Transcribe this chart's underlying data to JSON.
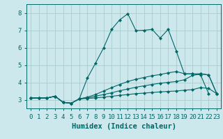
{
  "title": "",
  "xlabel": "Humidex (Indice chaleur)",
  "bg_color": "#cce8ec",
  "grid_color": "#aacccc",
  "line_color": "#006666",
  "xlim": [
    -0.5,
    23.5
  ],
  "ylim": [
    2.5,
    8.5
  ],
  "yticks": [
    3,
    4,
    5,
    6,
    7,
    8
  ],
  "xticks": [
    0,
    1,
    2,
    3,
    4,
    5,
    6,
    7,
    8,
    9,
    10,
    11,
    12,
    13,
    14,
    15,
    16,
    17,
    18,
    19,
    20,
    21,
    22,
    23
  ],
  "series": [
    {
      "x": [
        0,
        1,
        2,
        3,
        4,
        5,
        6,
        7,
        8,
        9,
        10,
        11,
        12,
        13,
        14,
        15,
        16,
        17,
        18,
        19,
        20,
        21,
        22,
        23
      ],
      "y": [
        3.1,
        3.1,
        3.1,
        3.2,
        2.85,
        2.8,
        3.05,
        3.08,
        3.1,
        3.15,
        3.2,
        3.25,
        3.3,
        3.35,
        3.38,
        3.42,
        3.45,
        3.48,
        3.5,
        3.55,
        3.58,
        3.7,
        3.65,
        3.35
      ]
    },
    {
      "x": [
        0,
        1,
        2,
        3,
        4,
        5,
        6,
        7,
        8,
        9,
        10,
        11,
        12,
        13,
        14,
        15,
        16,
        17,
        18,
        19,
        20,
        21,
        22,
        23
      ],
      "y": [
        3.1,
        3.1,
        3.1,
        3.2,
        2.85,
        2.8,
        3.05,
        3.1,
        3.2,
        3.3,
        3.4,
        3.52,
        3.62,
        3.72,
        3.8,
        3.88,
        3.95,
        4.0,
        4.05,
        4.15,
        4.4,
        4.48,
        4.43,
        3.35
      ]
    },
    {
      "x": [
        0,
        1,
        2,
        3,
        4,
        5,
        6,
        7,
        8,
        9,
        10,
        11,
        12,
        13,
        14,
        15,
        16,
        17,
        18,
        19,
        20,
        21,
        22,
        23
      ],
      "y": [
        3.1,
        3.1,
        3.1,
        3.2,
        2.85,
        2.8,
        3.05,
        3.15,
        3.3,
        3.5,
        3.7,
        3.88,
        4.05,
        4.18,
        4.28,
        4.38,
        4.45,
        4.55,
        4.62,
        4.5,
        4.48,
        4.5,
        4.43,
        3.35
      ]
    },
    {
      "x": [
        0,
        1,
        2,
        3,
        4,
        5,
        6,
        7,
        8,
        9,
        10,
        11,
        12,
        13,
        14,
        15,
        16,
        17,
        18,
        19,
        20,
        21,
        22,
        23
      ],
      "y": [
        3.1,
        3.1,
        3.1,
        3.2,
        2.85,
        2.8,
        3.05,
        4.25,
        5.1,
        5.98,
        7.05,
        7.6,
        7.95,
        6.98,
        7.0,
        7.05,
        6.55,
        7.05,
        5.8,
        4.48,
        4.5,
        4.43,
        3.35,
        null
      ]
    }
  ],
  "font_color": "#006666",
  "tick_fontsize": 6.5,
  "label_fontsize": 7.5
}
